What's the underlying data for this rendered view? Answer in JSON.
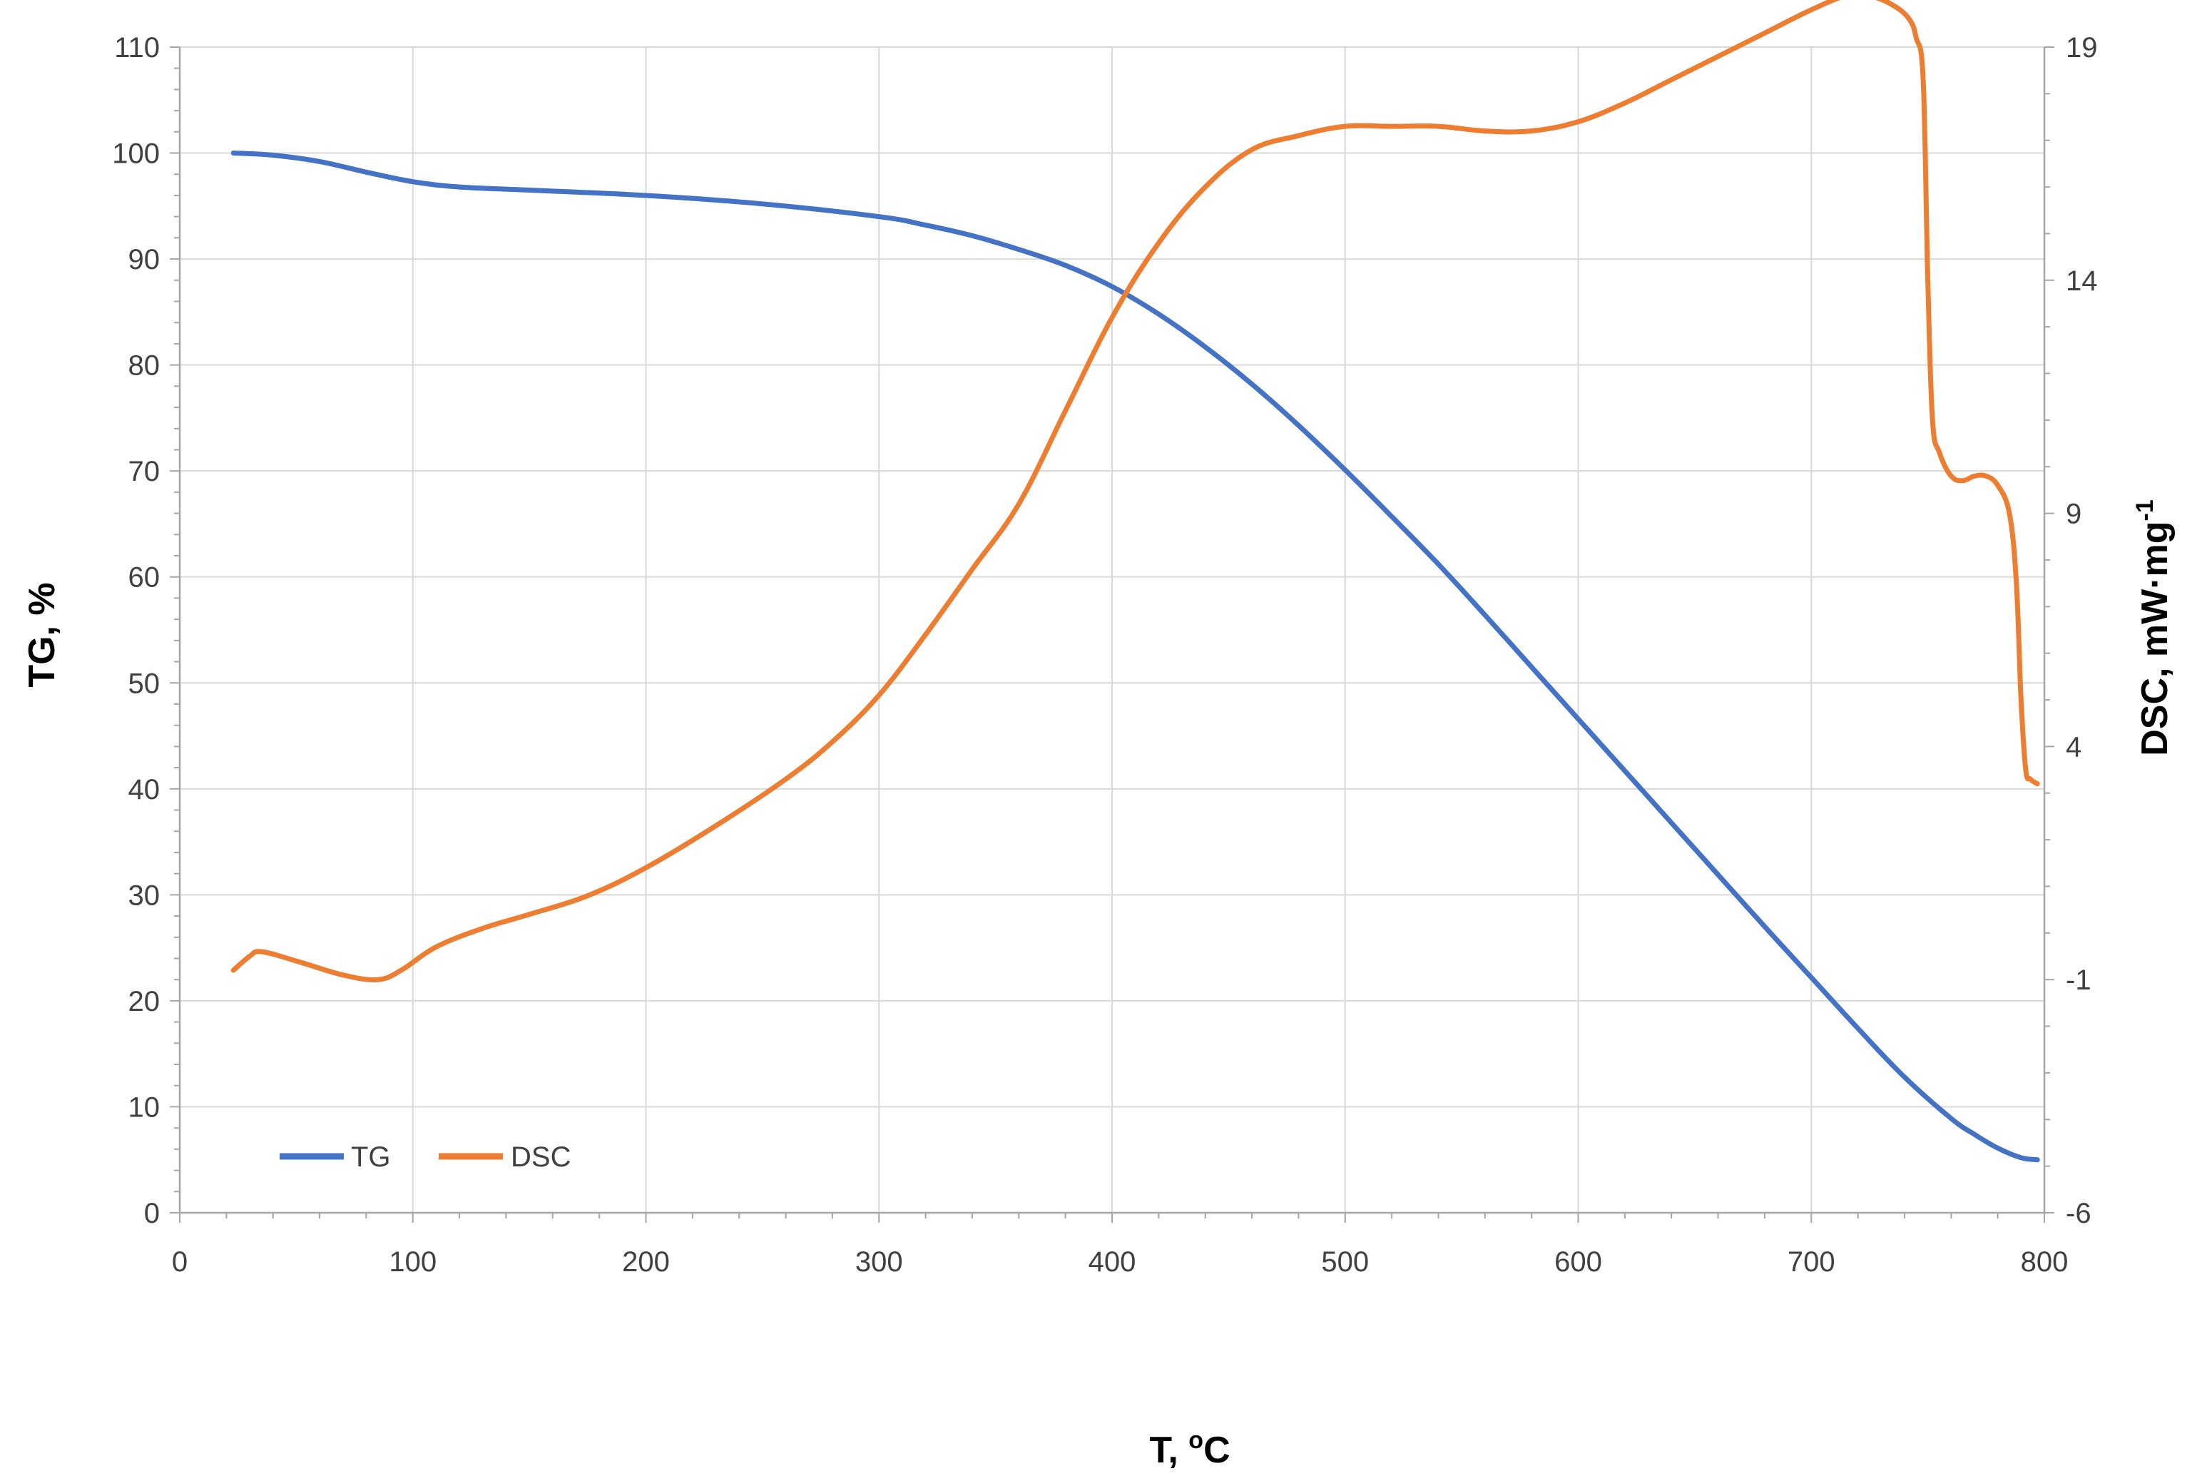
{
  "chart_data": {
    "type": "line",
    "title": "",
    "xlabel": "T, ",
    "xlabel_sup": "o",
    "xlabel_unit": "C",
    "ylabel": "TG, %",
    "y2label": "DSC, mW·mg",
    "y2label_sup": "-1",
    "xlim": [
      0,
      800
    ],
    "ylim": [
      0,
      110
    ],
    "y2lim": [
      -6,
      19
    ],
    "xticks": [
      0,
      100,
      200,
      300,
      400,
      500,
      600,
      700,
      800
    ],
    "yticks": [
      0,
      10,
      20,
      30,
      40,
      50,
      60,
      70,
      80,
      90,
      100,
      110
    ],
    "y2ticks": [
      -6,
      -1,
      4,
      9,
      14,
      19
    ],
    "grid": true,
    "legend_position": "bottom-left",
    "series": [
      {
        "name": "TG",
        "axis": "left",
        "color": "#4472c4",
        "x": [
          23,
          40,
          60,
          80,
          100,
          120,
          150,
          200,
          250,
          300,
          320,
          340,
          360,
          380,
          400,
          420,
          440,
          460,
          480,
          500,
          520,
          540,
          560,
          580,
          600,
          620,
          640,
          660,
          680,
          700,
          720,
          740,
          760,
          770,
          780,
          790,
          797
        ],
        "y": [
          100,
          99.8,
          99.2,
          98.2,
          97.3,
          96.8,
          96.5,
          96.0,
          95.2,
          94.0,
          93.2,
          92.2,
          90.9,
          89.4,
          87.4,
          84.8,
          81.7,
          78.2,
          74.3,
          70.1,
          65.7,
          61.2,
          56.4,
          51.5,
          46.6,
          41.7,
          36.8,
          31.9,
          27.0,
          22.2,
          17.4,
          12.8,
          8.9,
          7.4,
          6.1,
          5.2,
          5.0
        ]
      },
      {
        "name": "DSC",
        "axis": "right",
        "color": "#ed7d31",
        "x": [
          23,
          30,
          35,
          50,
          70,
          85,
          95,
          110,
          130,
          150,
          175,
          200,
          230,
          260,
          280,
          300,
          320,
          340,
          360,
          380,
          400,
          420,
          440,
          460,
          480,
          500,
          520,
          540,
          560,
          580,
          600,
          620,
          640,
          660,
          680,
          700,
          715,
          725,
          735,
          742,
          745,
          748,
          750,
          752,
          755,
          760,
          765,
          770,
          775,
          780,
          785,
          788,
          790,
          792,
          794,
          797
        ],
        "y": [
          -0.8,
          -0.5,
          -0.4,
          -0.6,
          -0.9,
          -1.0,
          -0.8,
          -0.3,
          0.1,
          0.4,
          0.8,
          1.4,
          2.3,
          3.3,
          4.1,
          5.1,
          6.4,
          7.8,
          9.2,
          11.2,
          13.2,
          14.8,
          16.0,
          16.8,
          17.1,
          17.3,
          17.3,
          17.3,
          17.2,
          17.2,
          17.4,
          17.8,
          18.3,
          18.8,
          19.3,
          19.8,
          20.1,
          20.1,
          19.9,
          19.6,
          19.2,
          18.3,
          14.0,
          11.0,
          10.3,
          9.8,
          9.7,
          9.8,
          9.8,
          9.6,
          9.0,
          7.5,
          5.0,
          3.5,
          3.3,
          3.2
        ]
      }
    ]
  }
}
